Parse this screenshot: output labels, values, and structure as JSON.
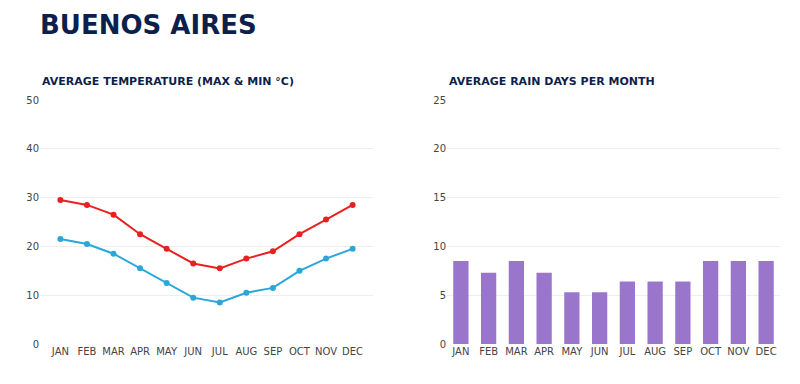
{
  "title": "BUENOS AIRES",
  "chart_data": [
    {
      "type": "line",
      "title": "AVERAGE TEMPERATURE (MAX & MIN °C)",
      "categories": [
        "JAN",
        "FEB",
        "MAR",
        "APR",
        "MAY",
        "JUN",
        "JUL",
        "AUG",
        "SEP",
        "OCT",
        "NOV",
        "DEC"
      ],
      "series": [
        {
          "color": "#e82020",
          "values": [
            29.5,
            28.5,
            26.5,
            22.5,
            19.5,
            16.5,
            15.5,
            17.5,
            19.0,
            22.5,
            25.5,
            28.5
          ]
        },
        {
          "color": "#29a8d8",
          "values": [
            21.5,
            20.5,
            18.5,
            15.5,
            12.5,
            9.5,
            8.5,
            10.5,
            11.5,
            15.0,
            17.5,
            19.5
          ]
        }
      ],
      "marker": "circle",
      "ylim": [
        0,
        50
      ],
      "yticks": [
        0,
        10,
        20,
        30,
        40,
        50
      ],
      "grid": true
    },
    {
      "type": "bar",
      "title": "AVERAGE RAIN DAYS PER MONTH",
      "categories": [
        "JAN",
        "FEB",
        "MAR",
        "APR",
        "MAY",
        "JUN",
        "JUL",
        "AUG",
        "SEP",
        "OCT",
        "NOV",
        "DEC"
      ],
      "values": [
        8.5,
        7.3,
        8.5,
        7.3,
        5.3,
        5.3,
        6.4,
        6.4,
        6.4,
        8.5,
        8.5,
        8.5
      ],
      "color": "#9975cc",
      "ylim": [
        0,
        25
      ],
      "yticks": [
        0,
        5,
        10,
        15,
        20,
        25
      ],
      "grid": true
    }
  ]
}
